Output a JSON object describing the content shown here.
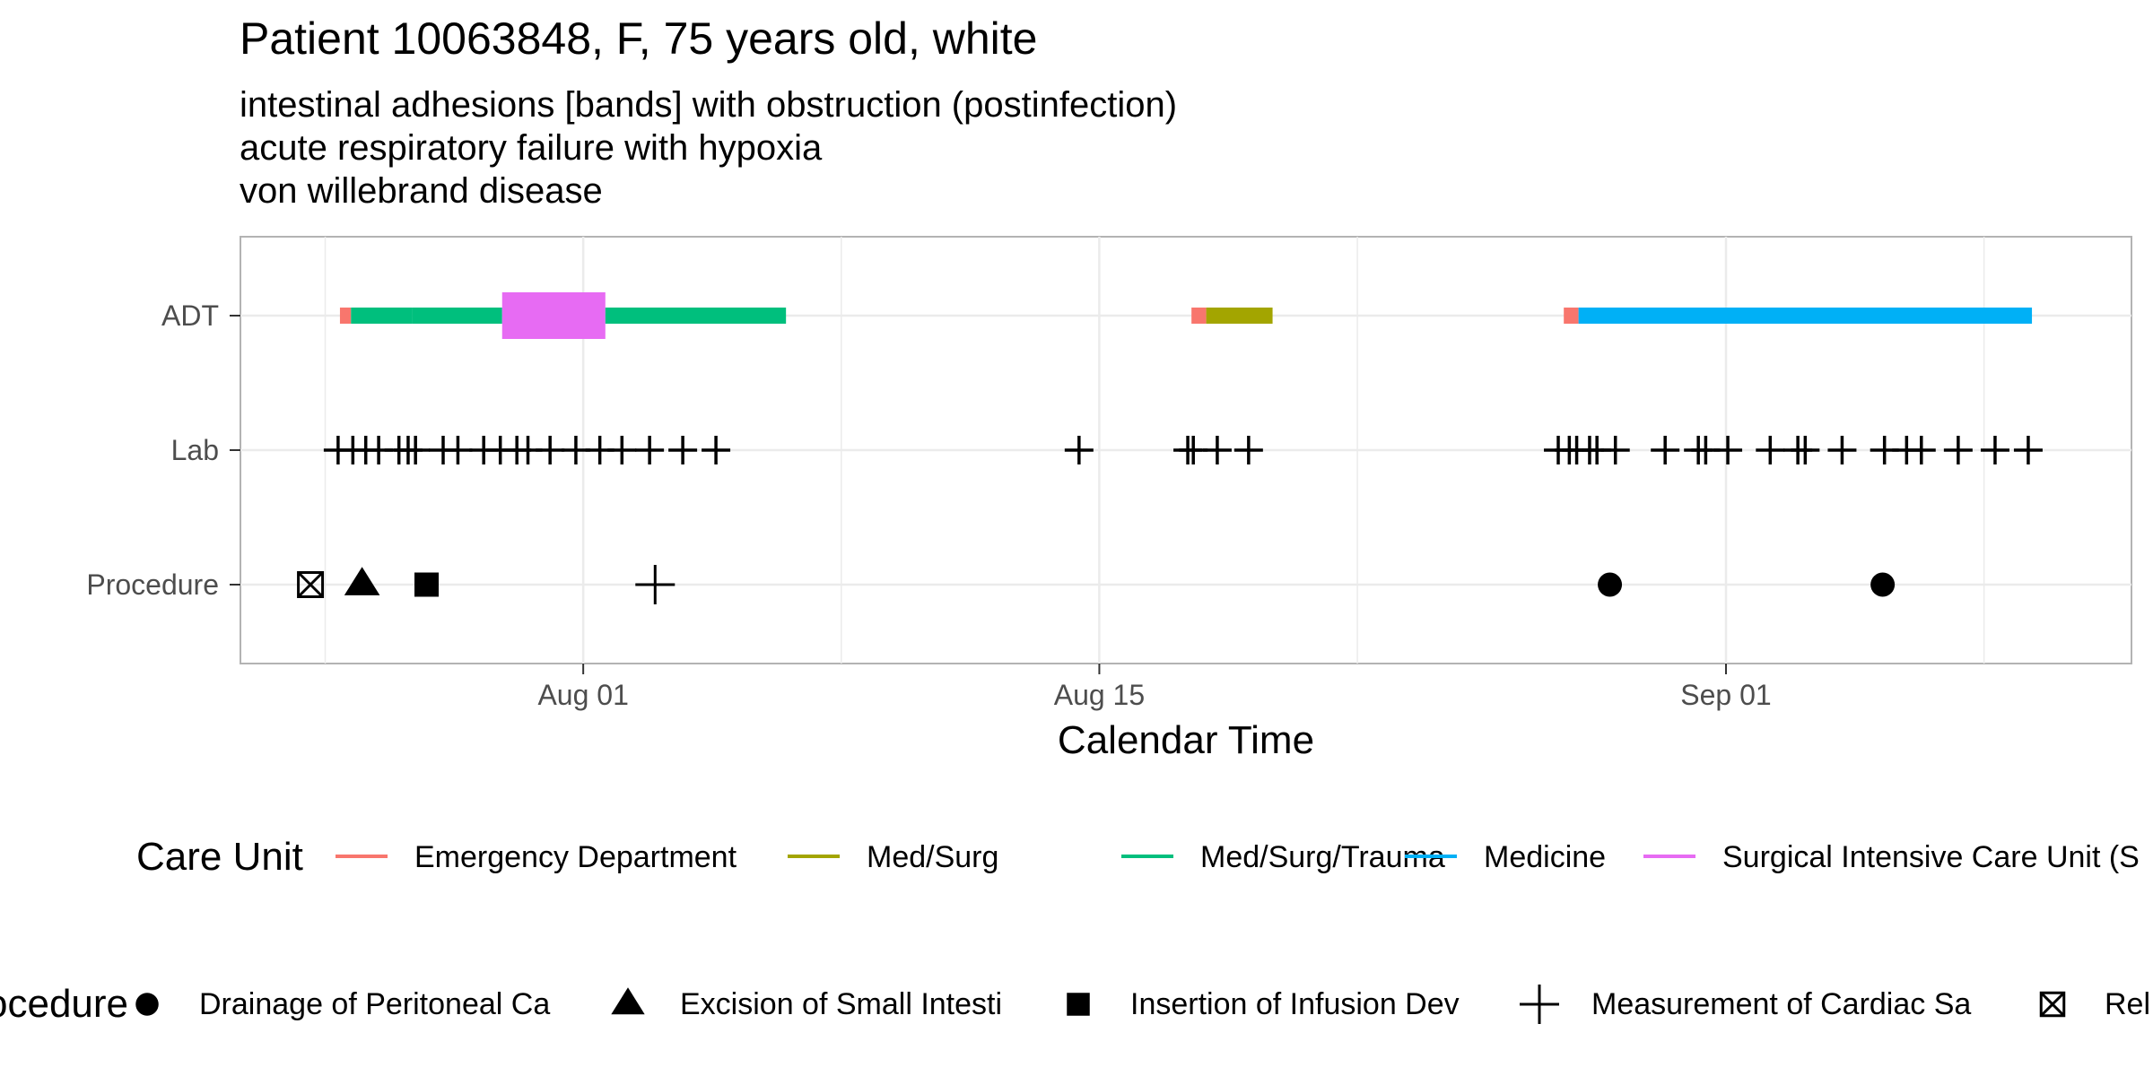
{
  "chart_data": {
    "type": "timeline",
    "title": "Patient 10063848, F, 75 years old, white",
    "subtitle_lines": [
      "intestinal adhesions [bands] with obstruction (postinfection)",
      "acute respiratory failure with hypoxia",
      "von willebrand disease"
    ],
    "xlabel": "Calendar Time",
    "x_ticks": [
      {
        "label": "Aug 01",
        "date": "2023-08-01"
      },
      {
        "label": "Aug 15",
        "date": "2023-08-15"
      },
      {
        "label": "Sep 01",
        "date": "2023-09-01"
      }
    ],
    "x_range": [
      "2023-07-22.7",
      "2023-09-12"
    ],
    "y_categories": [
      "ADT",
      "Lab",
      "Procedure"
    ],
    "grid": true,
    "adt_segments": [
      {
        "unit": "Emergency Department",
        "start": "2023-07-25.4",
        "end": "2023-07-25.7"
      },
      {
        "unit": "Med/Surg/Trauma",
        "start": "2023-07-25.7",
        "end": "2023-07-27.35"
      },
      {
        "unit": "Med/Surg/Trauma",
        "start": "2023-07-27.35",
        "end": "2023-07-29.8"
      },
      {
        "unit": "Surgical Intensive Care Unit (SICU)",
        "start": "2023-07-29.8",
        "end": "2023-08-01.6",
        "wide": true
      },
      {
        "unit": "Med/Surg/Trauma",
        "start": "2023-08-01.6",
        "end": "2023-08-06.5"
      },
      {
        "unit": "Emergency Department",
        "start": "2023-08-17.5",
        "end": "2023-08-17.9"
      },
      {
        "unit": "Med/Surg",
        "start": "2023-08-17.9",
        "end": "2023-08-19.7"
      },
      {
        "unit": "Emergency Department",
        "start": "2023-08-27.6",
        "end": "2023-08-28"
      },
      {
        "unit": "Medicine",
        "start": "2023-08-28",
        "end": "2023-09-09.3"
      }
    ],
    "lab_times": [
      "2023-07-25.35",
      "2023-07-25.75",
      "2023-07-26.1",
      "2023-07-26.45",
      "2023-07-27.0",
      "2023-07-27.25",
      "2023-07-27.45",
      "2023-07-28.2",
      "2023-07-28.6",
      "2023-07-29.3",
      "2023-07-29.75",
      "2023-07-30.2",
      "2023-07-30.5",
      "2023-07-31.1",
      "2023-07-31.8",
      "2023-08-01.45",
      "2023-08-02.05",
      "2023-08-02.8",
      "2023-08-03.7",
      "2023-08-04.6",
      "2023-08-14.45",
      "2023-08-17.4",
      "2023-08-17.55",
      "2023-08-18.2",
      "2023-08-19.05",
      "2023-08-27.45",
      "2023-08-27.75",
      "2023-08-27.95",
      "2023-08-28.3",
      "2023-08-28.5",
      "2023-08-29.0",
      "2023-08-30.35",
      "2023-08-31.25",
      "2023-08-31.45",
      "2023-09-01.05",
      "2023-09-02.2",
      "2023-09-02.95",
      "2023-09-03.15",
      "2023-09-04.15",
      "2023-09-05.3",
      "2023-09-05.9",
      "2023-09-06.3",
      "2023-09-07.3",
      "2023-09-08.3",
      "2023-09-09.2"
    ],
    "procedures": [
      {
        "name": "Release of ...",
        "shape": "box-x",
        "time": "2023-07-24.6"
      },
      {
        "name": "Excision of Small Intesti",
        "shape": "triangle",
        "time": "2023-07-26.0"
      },
      {
        "name": "Insertion of Infusion Dev",
        "shape": "square",
        "time": "2023-07-27.75"
      },
      {
        "name": "Measurement of Cardiac Sa",
        "shape": "plus",
        "time": "2023-08-02.95"
      },
      {
        "name": "Drainage of Peritoneal Ca",
        "shape": "circle",
        "time": "2023-08-28.85"
      },
      {
        "name": "Drainage of Peritoneal Ca",
        "shape": "circle",
        "time": "2023-09-05.25"
      }
    ]
  },
  "legend_care_unit": {
    "title": "Care Unit",
    "items": [
      {
        "label": "Emergency Department",
        "color": "#F8766D"
      },
      {
        "label": "Med/Surg",
        "color": "#A3A500"
      },
      {
        "label": "Med/Surg/Trauma",
        "color": "#00BF7D"
      },
      {
        "label": "Medicine",
        "color": "#00B0F6"
      },
      {
        "label": "Surgical Intensive Care Unit (S",
        "color": "#E76BF3"
      }
    ]
  },
  "legend_procedure": {
    "title": "Procedure",
    "items": [
      {
        "label": "Drainage of Peritoneal Ca",
        "shape": "circle"
      },
      {
        "label": "Excision of Small Intesti",
        "shape": "triangle"
      },
      {
        "label": "Insertion of Infusion Dev",
        "shape": "square"
      },
      {
        "label": "Measurement of Cardiac Sa",
        "shape": "plus"
      },
      {
        "label": "Rel",
        "shape": "box-x"
      }
    ]
  }
}
